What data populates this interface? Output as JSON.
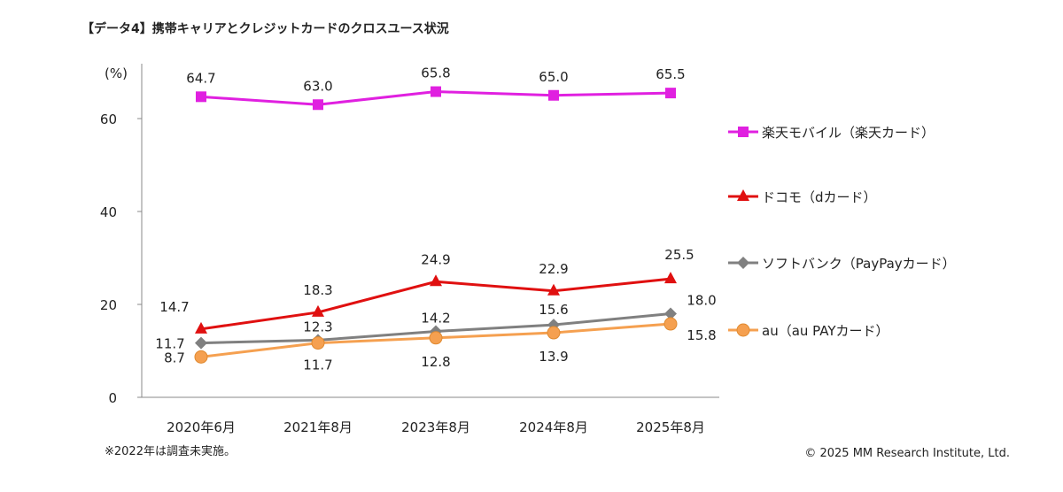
{
  "chart_data": {
    "type": "line",
    "title": "【データ4】携帯キャリアとクレジットカードのクロスユース状況",
    "ylabel": "(%)",
    "xlabel": "",
    "categories": [
      "2020年6月",
      "2021年8月",
      "2023年8月",
      "2024年8月",
      "2025年8月"
    ],
    "ylim": [
      0,
      70
    ],
    "yticks": [
      0,
      20,
      40,
      60
    ],
    "grid": false,
    "legend": "right",
    "series": [
      {
        "name": "楽天モバイル（楽天カード）",
        "values": [
          64.7,
          63.0,
          65.8,
          65.0,
          65.5
        ],
        "labels": [
          "64.7",
          "63.0",
          "65.8",
          "65.0",
          "65.5"
        ],
        "color": "#e020e0",
        "marker": "square"
      },
      {
        "name": "ドコモ（dカード）",
        "values": [
          14.7,
          18.3,
          24.9,
          22.9,
          25.5
        ],
        "labels": [
          "14.7",
          "18.3",
          "24.9",
          "22.9",
          "25.5"
        ],
        "color": "#e01010",
        "marker": "triangle"
      },
      {
        "name": "ソフトバンク（PayPayカード）",
        "values": [
          11.7,
          12.3,
          14.2,
          15.6,
          18.0
        ],
        "labels": [
          "11.7",
          "12.3",
          "14.2",
          "15.6",
          "18.0"
        ],
        "color": "#808080",
        "marker": "diamond"
      },
      {
        "name": "au（au PAYカード）",
        "values": [
          8.7,
          11.7,
          12.8,
          13.9,
          15.8
        ],
        "labels": [
          "8.7",
          "11.7",
          "12.8",
          "13.9",
          "15.8"
        ],
        "color": "#f5a050",
        "marker": "circle"
      }
    ],
    "footnote": "※2022年は調査未実施。",
    "copyright": "© 2025 MM Research Institute, Ltd."
  }
}
